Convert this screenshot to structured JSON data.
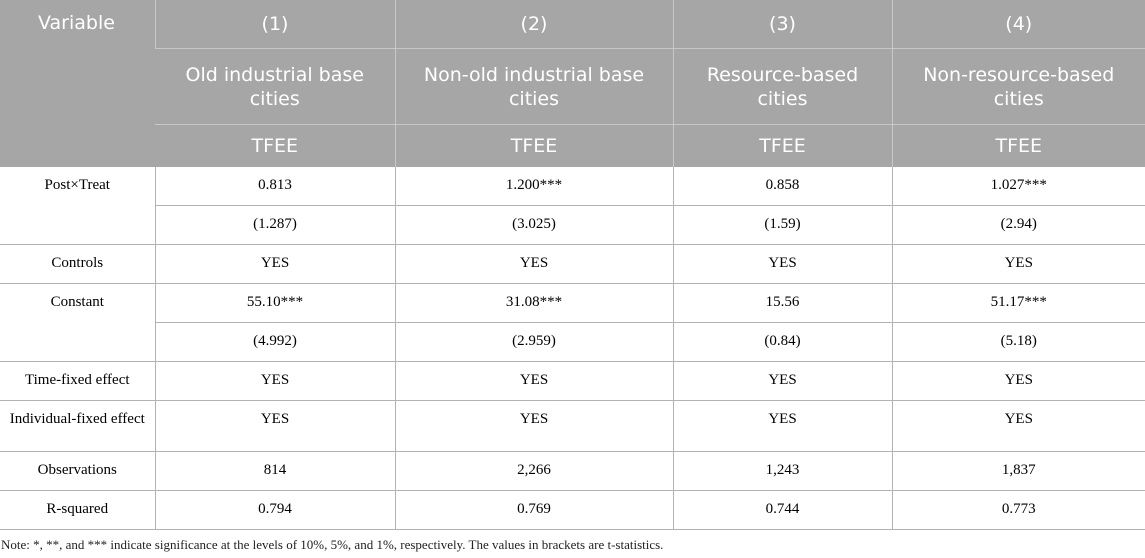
{
  "headers": {
    "variable": "Variable",
    "columns": [
      "(1)",
      "(2)",
      "(3)",
      "(4)"
    ],
    "groups": [
      "Old industrial base cities",
      "Non-old industrial base cities",
      "Resource-based cities",
      "Non-resource-based cities"
    ],
    "dependent": [
      "TFEE",
      "TFEE",
      "TFEE",
      "TFEE"
    ]
  },
  "rows": {
    "post_treat": {
      "label": "Post×Treat",
      "coef": [
        "0.813",
        "1.200***",
        "0.858",
        "1.027***"
      ],
      "tstat": [
        "(1.287)",
        "(3.025)",
        "(1.59)",
        "(2.94)"
      ]
    },
    "controls": {
      "label": "Controls",
      "values": [
        "YES",
        "YES",
        "YES",
        "YES"
      ]
    },
    "constant": {
      "label": "Constant",
      "coef": [
        "55.10***",
        "31.08***",
        "15.56",
        "51.17***"
      ],
      "tstat": [
        "(4.992)",
        "(2.959)",
        "(0.84)",
        "(5.18)"
      ]
    },
    "time_fe": {
      "label": "Time-fixed effect",
      "values": [
        "YES",
        "YES",
        "YES",
        "YES"
      ]
    },
    "indiv_fe": {
      "label": "Individual-fixed effect",
      "values": [
        "YES",
        "YES",
        "YES",
        "YES"
      ]
    },
    "observations": {
      "label": "Observations",
      "values": [
        "814",
        "2,266",
        "1,243",
        "1,837"
      ]
    },
    "r_squared": {
      "label": "R-squared",
      "values": [
        "0.794",
        "0.769",
        "0.744",
        "0.773"
      ]
    }
  },
  "note": "Note: *, **, and *** indicate significance at the levels of 10%, 5%, and 1%, respectively. The values in brackets are t-statistics."
}
